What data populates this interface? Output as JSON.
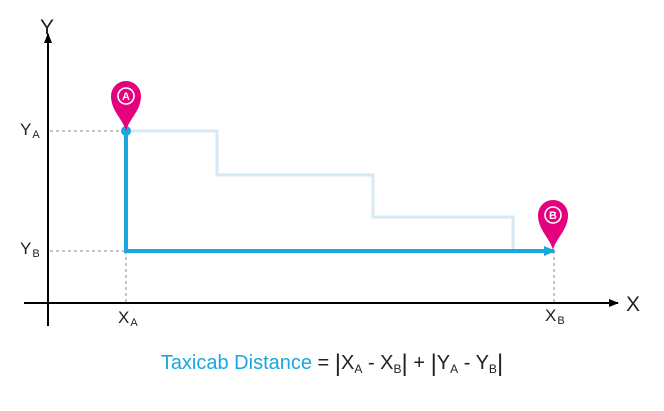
{
  "axes": {
    "x_name": "X",
    "y_name": "Y"
  },
  "ticks": {
    "ya": {
      "base": "Y",
      "sub": "A"
    },
    "yb": {
      "base": "Y",
      "sub": "B"
    },
    "xa": {
      "base": "X",
      "sub": "A"
    },
    "xb": {
      "base": "X",
      "sub": "B"
    }
  },
  "points": {
    "a": {
      "label": "A"
    },
    "b": {
      "label": "B"
    }
  },
  "formula": {
    "name": "Taxicab Distance",
    "equals": " = ",
    "bar": "|",
    "x1": "X",
    "x1_sub": "A",
    "x2": "X",
    "x2_sub": "B",
    "y1": "Y",
    "y1_sub": "A",
    "y2": "Y",
    "y2_sub": "B",
    "minus": " - ",
    "plus": " + "
  },
  "colors": {
    "path": "#1ba6de",
    "path_faint": "#cfe8f3",
    "pin": "#e5007e",
    "axis": "#000000",
    "guide": "#888888"
  }
}
